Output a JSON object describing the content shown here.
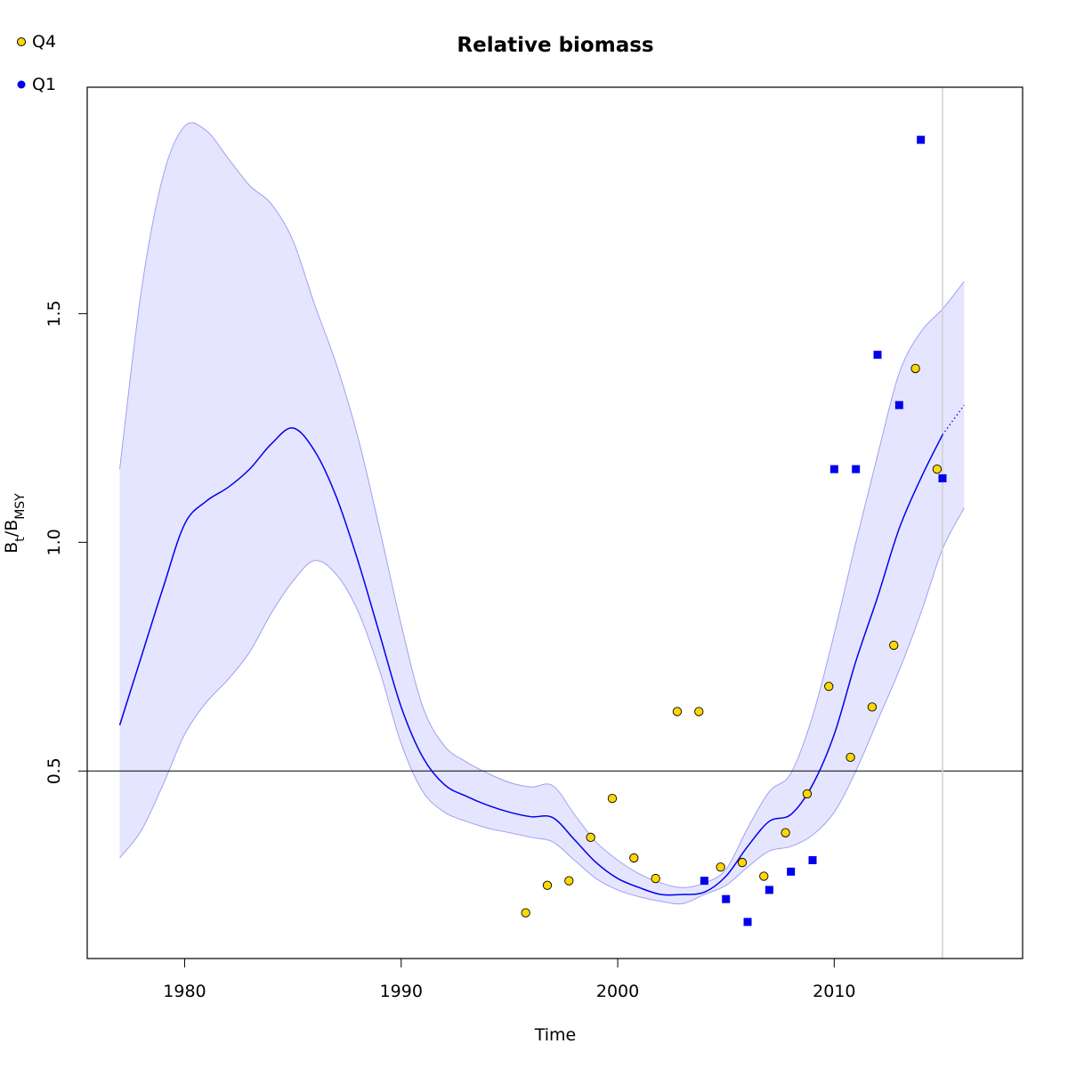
{
  "chart_data": {
    "type": "line",
    "title": "Relative biomass",
    "xlabel": "Time",
    "ylabel": {
      "main": "B",
      "sub1": "t",
      "slash": "/B",
      "sub2": "MSY"
    },
    "xlim": [
      1975.5,
      2018.7
    ],
    "ylim": [
      0.09,
      1.995
    ],
    "x_ticks": [
      1980,
      1990,
      2000,
      2010
    ],
    "x_tick_labels": [
      "1980",
      "1990",
      "2000",
      "2010"
    ],
    "y_ticks": [
      0.5,
      1.0,
      1.5
    ],
    "y_tick_labels": [
      "0.5",
      "1.0",
      "1.5"
    ],
    "reference_line": 0.5,
    "forecast_start": 2015,
    "legend_placement": "top-left",
    "colors": {
      "band_fill": "#e5e5ff",
      "band_edge": "#a0a0f0",
      "line": "#0000ee",
      "q4_fill": "#ffd700",
      "q1_fill": "#0000ee",
      "ref_line": "#000000",
      "forecast_vline": "#d0d0d0"
    },
    "series": [
      {
        "name": "Q4",
        "marker": "circle",
        "x": [
          1995.75,
          1996.75,
          1997.75,
          1998.75,
          1999.75,
          2000.75,
          2001.75,
          2002.75,
          2003.75,
          2004.75,
          2005.75,
          2006.75,
          2007.75,
          2008.75,
          2009.75,
          2010.75,
          2011.75,
          2012.75,
          2013.75,
          2014.75
        ],
        "y": [
          0.19,
          0.25,
          0.26,
          0.355,
          0.44,
          0.31,
          0.265,
          0.63,
          0.63,
          0.29,
          0.3,
          0.27,
          0.365,
          0.45,
          0.685,
          0.53,
          0.64,
          0.775,
          1.38,
          1.16
        ]
      },
      {
        "name": "Q1",
        "marker": "square",
        "x": [
          2004,
          2005,
          2006,
          2007,
          2008,
          2009,
          2010,
          2011,
          2012,
          2013,
          2014,
          2015
        ],
        "y": [
          0.26,
          0.22,
          0.17,
          0.24,
          0.28,
          0.305,
          1.16,
          1.16,
          1.41,
          1.3,
          1.88,
          1.14
        ]
      }
    ],
    "estimate": {
      "x": [
        1977,
        1978,
        1979,
        1980,
        1981,
        1982,
        1983,
        1984,
        1985,
        1986,
        1987,
        1988,
        1989,
        1990,
        1991,
        1992,
        1993,
        1994,
        1995,
        1996,
        1997,
        1998,
        1999,
        2000,
        2001,
        2002,
        2003,
        2004,
        2005,
        2006,
        2007,
        2008,
        2009,
        2010,
        2011,
        2012,
        2013,
        2014,
        2015,
        2016
      ],
      "mid": [
        0.6,
        0.75,
        0.9,
        1.04,
        1.09,
        1.12,
        1.16,
        1.215,
        1.25,
        1.2,
        1.1,
        0.96,
        0.8,
        0.64,
        0.53,
        0.47,
        0.445,
        0.425,
        0.41,
        0.4,
        0.398,
        0.35,
        0.3,
        0.265,
        0.245,
        0.23,
        0.23,
        0.235,
        0.27,
        0.335,
        0.39,
        0.405,
        0.47,
        0.58,
        0.74,
        0.88,
        1.03,
        1.14,
        1.235,
        1.3
      ],
      "lower": [
        0.31,
        0.37,
        0.47,
        0.58,
        0.65,
        0.7,
        0.76,
        0.845,
        0.915,
        0.96,
        0.93,
        0.85,
        0.72,
        0.56,
        0.455,
        0.41,
        0.39,
        0.375,
        0.365,
        0.355,
        0.345,
        0.305,
        0.265,
        0.24,
        0.225,
        0.215,
        0.21,
        0.23,
        0.25,
        0.29,
        0.325,
        0.335,
        0.36,
        0.41,
        0.5,
        0.61,
        0.72,
        0.845,
        0.985,
        1.075
      ],
      "upper": [
        1.16,
        1.55,
        1.8,
        1.91,
        1.9,
        1.84,
        1.78,
        1.74,
        1.66,
        1.52,
        1.39,
        1.23,
        1.03,
        0.82,
        0.64,
        0.555,
        0.52,
        0.495,
        0.475,
        0.465,
        0.468,
        0.405,
        0.345,
        0.305,
        0.275,
        0.255,
        0.245,
        0.255,
        0.285,
        0.375,
        0.455,
        0.495,
        0.62,
        0.8,
        1.0,
        1.19,
        1.37,
        1.46,
        1.51,
        1.57
      ]
    },
    "forecast_from_index": 38
  }
}
